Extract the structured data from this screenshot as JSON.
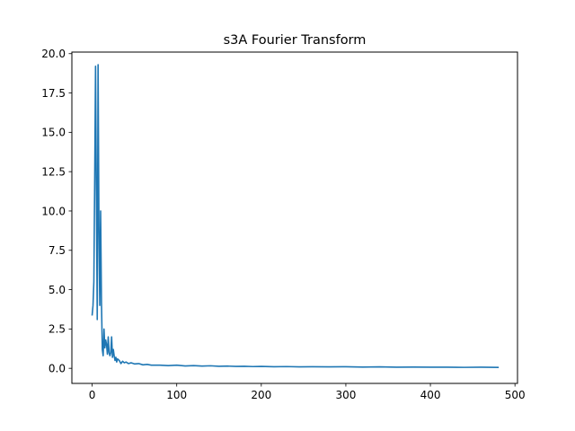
{
  "chart_data": {
    "type": "line",
    "title": "s3A Fourier Transform",
    "xlabel": "",
    "ylabel": "",
    "xlim": [
      -24,
      503
    ],
    "ylim": [
      -0.96,
      20.1
    ],
    "xticks": [
      0,
      100,
      200,
      300,
      400,
      500
    ],
    "yticks": [
      0.0,
      2.5,
      5.0,
      7.5,
      10.0,
      12.5,
      15.0,
      17.5,
      20.0
    ],
    "ytick_labels": [
      "0.0",
      "2.5",
      "5.0",
      "7.5",
      "10.0",
      "12.5",
      "15.0",
      "17.5",
      "20.0"
    ],
    "grid": false,
    "legend": "none",
    "series_color": "#1f77b4",
    "series": [
      {
        "x": [
          0,
          1,
          2,
          3,
          4,
          5,
          6,
          7,
          8,
          9,
          10,
          11,
          12,
          13,
          14,
          15,
          16,
          17,
          18,
          19,
          20,
          21,
          22,
          23,
          24,
          25,
          26,
          27,
          28,
          29,
          30,
          32,
          34,
          36,
          38,
          40,
          43,
          46,
          50,
          55,
          60,
          65,
          70,
          80,
          90,
          100,
          110,
          120,
          130,
          140,
          150,
          160,
          170,
          180,
          190,
          200,
          215,
          230,
          245,
          260,
          280,
          300,
          320,
          340,
          360,
          380,
          400,
          420,
          440,
          460,
          480
        ],
        "y": [
          3.4,
          4.0,
          5.5,
          12.0,
          19.2,
          11.0,
          3.1,
          19.3,
          9.0,
          4.0,
          10.0,
          4.2,
          1.2,
          0.8,
          2.5,
          1.3,
          1.8,
          1.5,
          0.9,
          2.0,
          1.0,
          0.8,
          1.0,
          2.0,
          0.7,
          1.2,
          0.8,
          0.5,
          0.7,
          0.4,
          0.6,
          0.5,
          0.3,
          0.45,
          0.35,
          0.4,
          0.3,
          0.35,
          0.28,
          0.3,
          0.22,
          0.25,
          0.2,
          0.2,
          0.17,
          0.2,
          0.15,
          0.17,
          0.14,
          0.16,
          0.13,
          0.14,
          0.12,
          0.13,
          0.11,
          0.12,
          0.1,
          0.11,
          0.09,
          0.1,
          0.09,
          0.1,
          0.08,
          0.09,
          0.07,
          0.08,
          0.07,
          0.07,
          0.06,
          0.07,
          0.06
        ]
      }
    ]
  }
}
